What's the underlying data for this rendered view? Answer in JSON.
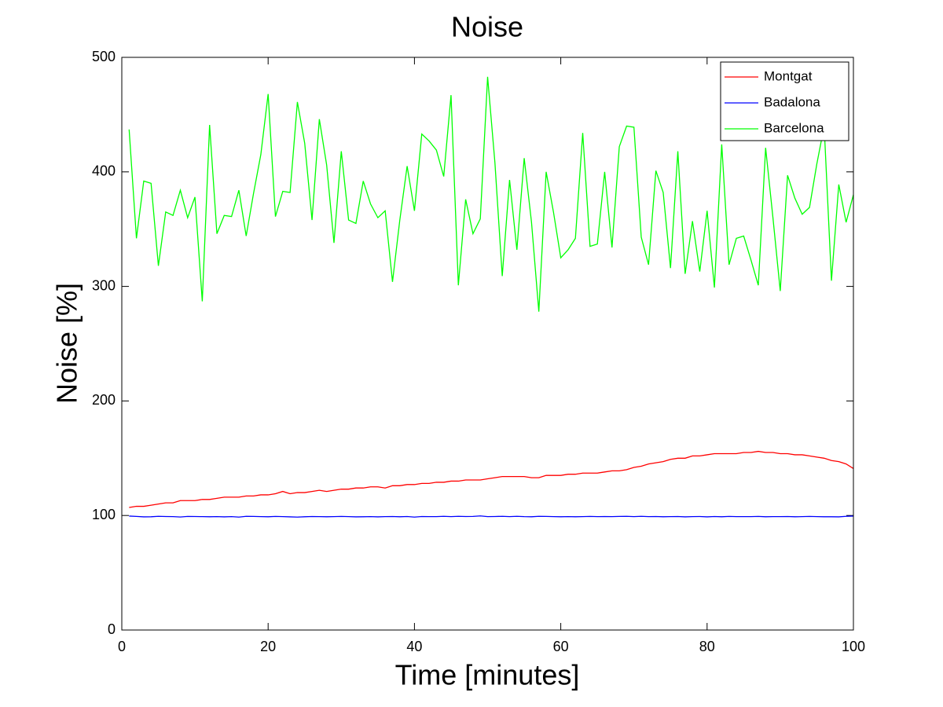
{
  "chart_data": {
    "type": "line",
    "title": "Noise",
    "x_label": "Time [minutes]",
    "y_label": "Noise [%]",
    "x": [
      1,
      2,
      3,
      4,
      5,
      6,
      7,
      8,
      9,
      10,
      11,
      12,
      13,
      14,
      15,
      16,
      17,
      18,
      19,
      20,
      21,
      22,
      23,
      24,
      25,
      26,
      27,
      28,
      29,
      30,
      31,
      32,
      33,
      34,
      35,
      36,
      37,
      38,
      39,
      40,
      41,
      42,
      43,
      44,
      45,
      46,
      47,
      48,
      49,
      50,
      51,
      52,
      53,
      54,
      55,
      56,
      57,
      58,
      59,
      60,
      61,
      62,
      63,
      64,
      65,
      66,
      67,
      68,
      69,
      70,
      71,
      72,
      73,
      74,
      75,
      76,
      77,
      78,
      79,
      80,
      81,
      82,
      83,
      84,
      85,
      86,
      87,
      88,
      89,
      90,
      91,
      92,
      93,
      94,
      95,
      96,
      97,
      98,
      99,
      100
    ],
    "series": [
      {
        "name": "Montgat",
        "color": "#ff0000",
        "values": [
          107,
          108,
          108,
          109,
          110,
          111,
          111,
          113,
          113,
          113,
          114,
          114,
          115,
          116,
          116,
          116,
          117,
          117,
          118,
          118,
          119,
          121,
          119,
          120,
          120,
          121,
          122,
          121,
          122,
          123,
          123,
          124,
          124,
          125,
          125,
          124,
          126,
          126,
          127,
          127,
          128,
          128,
          129,
          129,
          130,
          130,
          131,
          131,
          131,
          132,
          133,
          134,
          134,
          134,
          134,
          133,
          133,
          135,
          135,
          135,
          136,
          136,
          137,
          137,
          137,
          138,
          139,
          139,
          140,
          142,
          143,
          145,
          146,
          147,
          149,
          150,
          150,
          152,
          152,
          153,
          154,
          154,
          154,
          154,
          155,
          155,
          156,
          155,
          155,
          154,
          154,
          153,
          153,
          152,
          151,
          150,
          148,
          147,
          145,
          141
        ]
      },
      {
        "name": "Badalona",
        "color": "#0000ff",
        "values": [
          99.5,
          99.2,
          98.8,
          98.9,
          99.3,
          99.1,
          99,
          98.7,
          99.2,
          99.1,
          99,
          98.9,
          99,
          98.8,
          99,
          98.6,
          99.3,
          99.2,
          99,
          98.9,
          99.2,
          99,
          98.8,
          98.6,
          98.9,
          99.1,
          99,
          98.9,
          99,
          99.2,
          99,
          98.8,
          98.9,
          99,
          98.8,
          99,
          99.1,
          98.9,
          99.1,
          98.6,
          99.1,
          99,
          99,
          99.3,
          99,
          99.3,
          99.1,
          99.2,
          99.6,
          99,
          99.1,
          99.3,
          99,
          99.3,
          99,
          98.9,
          99.3,
          99.2,
          99,
          98.9,
          99,
          98.9,
          99,
          99.2,
          99,
          99.1,
          99,
          99.2,
          99.3,
          99,
          99.3,
          99,
          99.1,
          98.9,
          99,
          99.1,
          98.8,
          99,
          99.1,
          98.8,
          99.1,
          98.9,
          99.2,
          99,
          99,
          99,
          99.2,
          98.9,
          99,
          99,
          99.1,
          98.9,
          99,
          99.2,
          99,
          98.9,
          98.9,
          98.8,
          99.3,
          99.5
        ]
      },
      {
        "name": "Barcelona",
        "color": "#00ff00",
        "values": [
          437,
          342,
          392,
          390,
          318,
          365,
          362,
          384,
          360,
          378,
          287,
          441,
          346,
          362,
          361,
          384,
          344,
          381,
          415,
          468,
          361,
          383,
          382,
          461,
          425,
          358,
          446,
          406,
          338,
          418,
          358,
          355,
          392,
          372,
          360,
          366,
          304,
          358,
          405,
          366,
          433,
          427,
          419,
          396,
          467,
          301,
          376,
          346,
          359,
          483,
          408,
          309,
          393,
          332,
          412,
          356,
          278,
          400,
          365,
          325,
          332,
          342,
          434,
          335,
          337,
          400,
          334,
          422,
          440,
          439,
          343,
          319,
          401,
          382,
          316,
          418,
          311,
          357,
          313,
          366,
          299,
          424,
          319,
          342,
          344,
          323,
          301,
          421,
          360,
          296,
          397,
          377,
          363,
          369,
          407,
          440,
          305,
          389,
          356,
          380
        ]
      }
    ],
    "xlim": [
      0,
      100
    ],
    "ylim": [
      0,
      500
    ],
    "xticks": [
      0,
      20,
      40,
      60,
      80,
      100
    ],
    "yticks": [
      0,
      100,
      200,
      300,
      400,
      500
    ],
    "legend": "upper right",
    "grid": false
  }
}
